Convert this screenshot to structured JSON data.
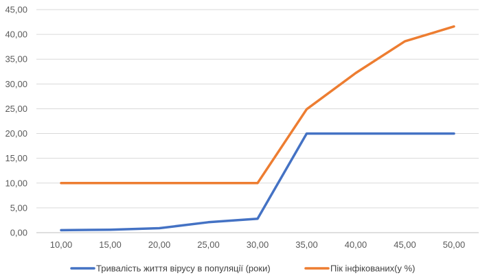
{
  "chart_data": {
    "type": "line",
    "x": [
      10,
      15,
      20,
      25,
      30,
      35,
      40,
      45,
      50
    ],
    "x_tick_labels": [
      "10,00",
      "15,00",
      "20,00",
      "25,00",
      "30,00",
      "35,00",
      "40,00",
      "45,00",
      "50,00"
    ],
    "y_tick_labels": [
      "0,00",
      "5,00",
      "10,00",
      "15,00",
      "20,00",
      "25,00",
      "30,00",
      "35,00",
      "40,00",
      "45,00"
    ],
    "ylim": [
      0,
      45
    ],
    "y_ticks": [
      0,
      5,
      10,
      15,
      20,
      25,
      30,
      35,
      40,
      45
    ],
    "grid": "horizontal",
    "legend_position": "bottom",
    "series": [
      {
        "name": "Тривалість життя вірусу в популяції (роки)",
        "color": "#4472C4",
        "values": [
          0.5,
          0.6,
          0.9,
          2.1,
          2.8,
          20.0,
          20.0,
          20.0,
          20.0
        ]
      },
      {
        "name": "Пік інфікованих(у %)",
        "color": "#ED7D31",
        "values": [
          10.0,
          10.0,
          10.0,
          10.0,
          10.0,
          24.9,
          32.2,
          38.6,
          41.6
        ]
      }
    ]
  }
}
